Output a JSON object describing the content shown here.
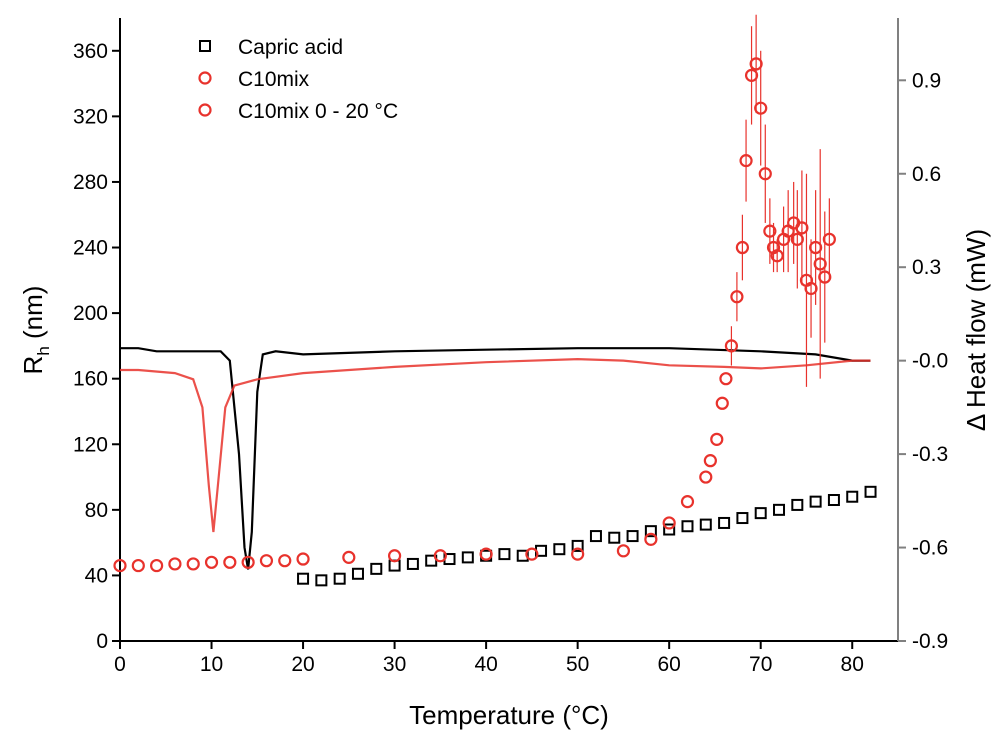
{
  "chart_data": {
    "type": "scatter",
    "xlabel": "Temperature (°C)",
    "ylabel": {
      "main": "R",
      "sub": "h",
      "unit": " (nm)"
    },
    "y2label": "Δ Heat flow (mW)",
    "xlim": [
      0,
      85
    ],
    "xticks": [
      0,
      10,
      20,
      30,
      40,
      50,
      60,
      70,
      80
    ],
    "ylim": [
      0,
      380
    ],
    "yticks": [
      0,
      40,
      80,
      120,
      160,
      200,
      240,
      280,
      320,
      360
    ],
    "y2lim": [
      -0.9,
      1.1
    ],
    "y2ticks": [
      -0.9,
      -0.6,
      -0.3,
      {
        "value": 0,
        "label": "-0.0"
      },
      0.3,
      0.6,
      0.9
    ],
    "y2color": "#808080",
    "legend": "upper left",
    "series": [
      {
        "name": "Capric acid",
        "type": "scatter",
        "marker": "square",
        "color": "#000000",
        "x": [
          20,
          22,
          24,
          26,
          28,
          30,
          32,
          34,
          36,
          38,
          40,
          42,
          44,
          46,
          48,
          50,
          52,
          54,
          56,
          58,
          60,
          62,
          64,
          66,
          68,
          70,
          72,
          74,
          76,
          78,
          80,
          82
        ],
        "values": [
          38,
          37,
          38,
          41,
          44,
          46,
          47,
          49,
          50,
          51,
          52,
          53,
          52,
          55,
          56,
          58,
          64,
          63,
          64,
          67,
          68,
          70,
          71,
          72,
          75,
          78,
          80,
          83,
          85,
          86,
          88,
          91
        ]
      },
      {
        "name": "C10mix",
        "type": "scatter",
        "marker": "circle",
        "color": "#e8322c",
        "x": [
          20,
          25,
          30,
          35,
          40,
          45,
          50,
          55,
          58,
          60,
          62,
          64,
          64.5,
          65.2,
          65.8,
          66.2,
          66.8,
          67.4,
          68,
          68.4,
          69,
          69.5,
          70,
          70.5,
          71,
          71.4,
          71.8,
          72.5,
          73,
          73.6,
          74,
          74.5,
          75,
          75.5,
          76,
          76.5,
          77,
          77.5
        ],
        "values": [
          50,
          51,
          52,
          52,
          53,
          53,
          53,
          55,
          62,
          72,
          85,
          100,
          110,
          123,
          145,
          160,
          180,
          210,
          240,
          293,
          345,
          352,
          325,
          285,
          250,
          240,
          235,
          245,
          250,
          255,
          245,
          252,
          220,
          215,
          240,
          230,
          222,
          245
        ],
        "errors": [
          null,
          null,
          null,
          null,
          null,
          null,
          null,
          null,
          null,
          null,
          null,
          null,
          null,
          null,
          null,
          null,
          12,
          15,
          20,
          25,
          30,
          30,
          35,
          30,
          20,
          15,
          10,
          20,
          25,
          25,
          30,
          35,
          65,
          30,
          35,
          70,
          40,
          25
        ]
      },
      {
        "name": "C10mix 0 - 20 °C",
        "type": "scatter",
        "marker": "circle",
        "color": "#e8322c",
        "x": [
          0,
          2,
          4,
          6,
          8,
          10,
          12,
          14,
          16,
          18
        ],
        "values": [
          46,
          46,
          46,
          47,
          47,
          48,
          48,
          48,
          49,
          49
        ]
      },
      {
        "type": "line",
        "axis": "y2",
        "color": "#000000",
        "x": [
          0,
          2,
          4,
          8,
          11,
          12,
          13,
          13.6,
          14,
          14.4,
          15,
          15.6,
          17,
          20,
          30,
          40,
          50,
          60,
          70,
          76,
          80,
          82
        ],
        "values": [
          0.04,
          0.04,
          0.03,
          0.03,
          0.03,
          0.0,
          -0.3,
          -0.6,
          -0.67,
          -0.55,
          -0.1,
          0.02,
          0.03,
          0.02,
          0.03,
          0.035,
          0.04,
          0.04,
          0.03,
          0.02,
          0.0,
          0.0
        ]
      },
      {
        "type": "line",
        "axis": "y2",
        "color": "#e8322c",
        "x": [
          0,
          2,
          6,
          8,
          9,
          9.7,
          10.2,
          10.7,
          11.5,
          12.5,
          15,
          20,
          30,
          40,
          50,
          55,
          60,
          66,
          70,
          75,
          80,
          82
        ],
        "values": [
          -0.03,
          -0.03,
          -0.04,
          -0.06,
          -0.15,
          -0.4,
          -0.55,
          -0.4,
          -0.15,
          -0.08,
          -0.06,
          -0.04,
          -0.02,
          -0.005,
          0.005,
          0.0,
          -0.015,
          -0.02,
          -0.025,
          -0.015,
          0.0,
          0.0
        ]
      }
    ]
  }
}
